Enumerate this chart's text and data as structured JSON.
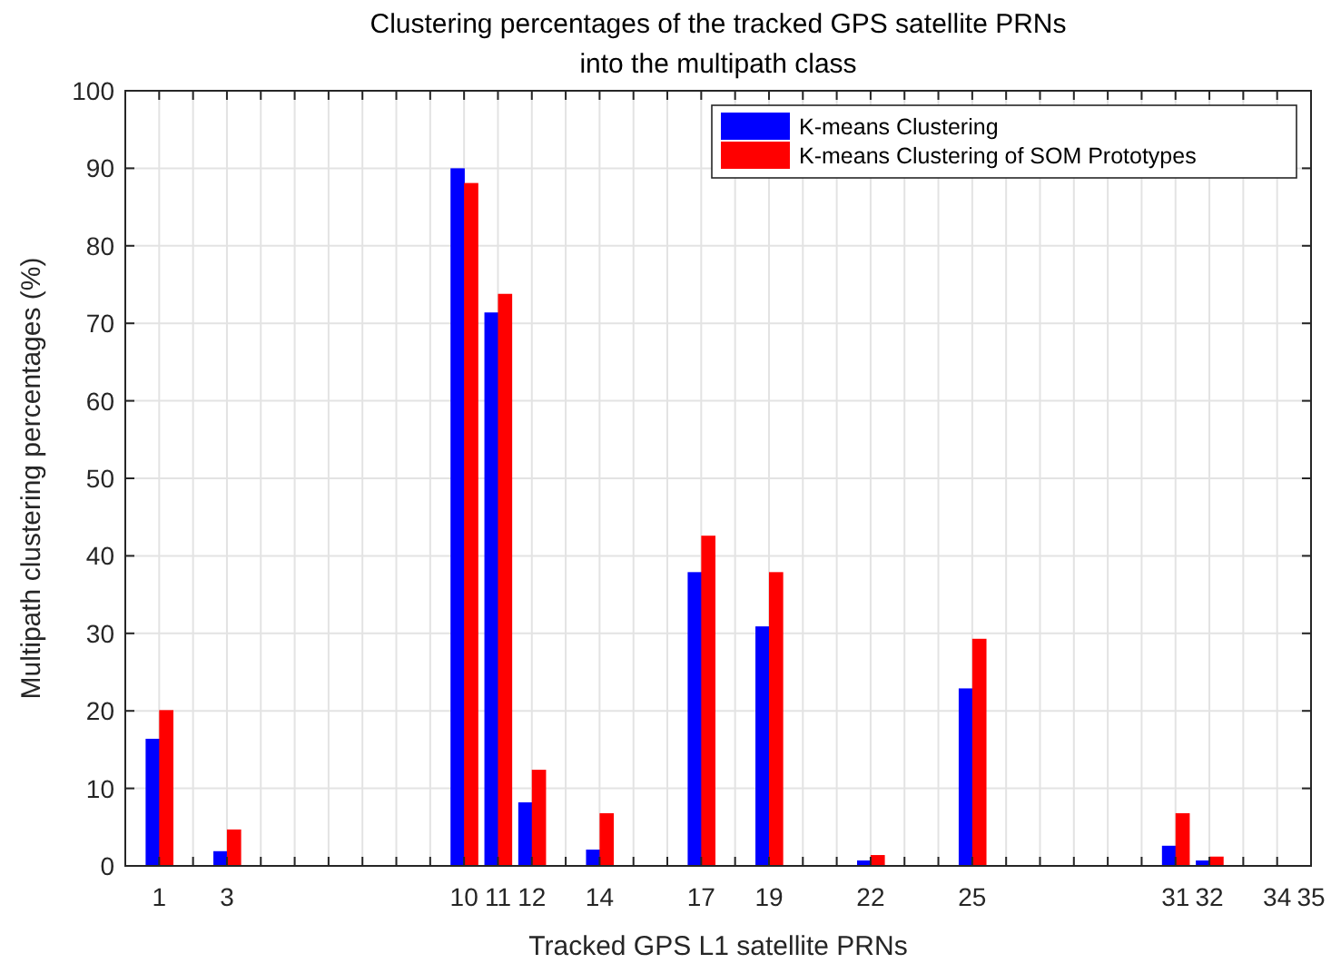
{
  "chart_data": {
    "type": "bar",
    "title": "Clustering percentages of the tracked GPS satellite PRNs\ninto the multipath class",
    "xlabel": "Tracked GPS L1 satellite PRNs",
    "ylabel": "Multipath clustering percentages (%)",
    "x": [
      1,
      3,
      10,
      11,
      12,
      14,
      17,
      19,
      22,
      25,
      31,
      32,
      34,
      35
    ],
    "series": [
      {
        "name": "K-means Clustering",
        "color": "#0000ff",
        "values": [
          16.4,
          1.9,
          90,
          71.4,
          8.2,
          2.1,
          37.9,
          30.9,
          0.7,
          22.9,
          2.6,
          0.7,
          0,
          0
        ]
      },
      {
        "name": "K-means Clustering of SOM Prototypes",
        "color": "#ff0000",
        "values": [
          20.1,
          4.7,
          88.1,
          73.8,
          12.4,
          6.8,
          42.6,
          37.9,
          1.4,
          29.3,
          6.8,
          1.2,
          0,
          0
        ]
      }
    ],
    "xlim": [
      0,
      35
    ],
    "xticks": [
      {
        "value": 0,
        "label": null
      },
      1,
      {
        "value": 2,
        "label": null
      },
      3,
      {
        "value": 4,
        "label": null
      },
      {
        "value": 5,
        "label": null
      },
      {
        "value": 6,
        "label": null
      },
      {
        "value": 7,
        "label": null
      },
      {
        "value": 8,
        "label": null
      },
      {
        "value": 9,
        "label": null
      },
      10,
      11,
      12,
      {
        "value": 13,
        "label": null
      },
      14,
      {
        "value": 15,
        "label": null
      },
      {
        "value": 16,
        "label": null
      },
      17,
      {
        "value": 18,
        "label": null
      },
      19,
      {
        "value": 20,
        "label": null
      },
      {
        "value": 21,
        "label": null
      },
      22,
      {
        "value": 23,
        "label": null
      },
      {
        "value": 24,
        "label": null
      },
      25,
      {
        "value": 26,
        "label": null
      },
      {
        "value": 27,
        "label": null
      },
      {
        "value": 28,
        "label": null
      },
      {
        "value": 29,
        "label": null
      },
      {
        "value": 30,
        "label": null
      },
      31,
      32,
      {
        "value": 33,
        "label": null
      },
      34,
      35
    ],
    "ylim": [
      0,
      100
    ],
    "yticks": [
      0,
      10,
      20,
      30,
      40,
      50,
      60,
      70,
      80,
      90,
      100
    ],
    "grid": true,
    "legend": "top right"
  }
}
